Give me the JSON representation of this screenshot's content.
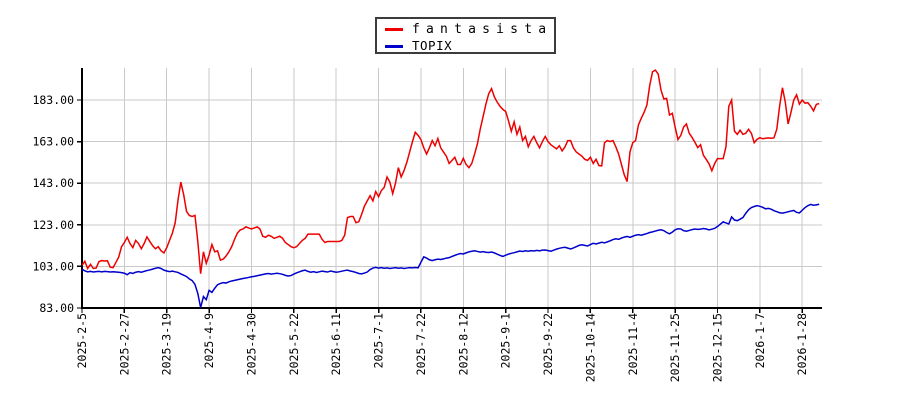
{
  "legend": {
    "items": [
      {
        "label": "fantasista",
        "color": "#ee0000"
      },
      {
        "label": "TOPIX",
        "color": "#0000cc"
      }
    ]
  },
  "chart_data": {
    "type": "line",
    "title": "",
    "xlabel": "",
    "ylabel": "",
    "grid": true,
    "legend_position": "top-center",
    "background_color": "#ffffff",
    "grid_color": "#c9c9c9",
    "axis_color": "#000000",
    "ylim": [
      83,
      198.4
    ],
    "y_tick_values": [
      83,
      103,
      123,
      143,
      163,
      183
    ],
    "y_tick_labels": [
      "83.00",
      "103.00",
      "123.00",
      "143.00",
      "163.00",
      "183.00"
    ],
    "x_tick_interval_days": 15,
    "total_days": 262,
    "x_tick_labels": [
      "2025-2-5",
      "2025-2-27",
      "2025-3-19",
      "2025-4-9",
      "2025-4-30",
      "2025-5-22",
      "2025-6-11",
      "2025-7-1",
      "2025-7-22",
      "2025-8-12",
      "2025-9-1",
      "2025-9-22",
      "2025-10-14",
      "2025-11-4",
      "2025-11-25",
      "2025-12-15",
      "2026-1-7",
      "2026-1-28"
    ],
    "series": [
      {
        "name": "fantasista",
        "color": "#ee0000",
        "values": [
          103.5,
          105.5,
          102,
          104,
          102,
          102.2,
          105.3,
          105.8,
          105.6,
          105.7,
          102.6,
          102.4,
          104.9,
          107.5,
          112.5,
          114.5,
          117,
          114,
          112,
          115.5,
          114,
          111.5,
          114,
          117.2,
          115,
          113,
          111.5,
          112.5,
          110.5,
          109.5,
          112,
          115.5,
          119,
          124,
          135,
          143.5,
          137.5,
          129.5,
          127.5,
          127,
          127.5,
          115,
          99.5,
          110,
          104.5,
          108.5,
          113.5,
          110,
          110.5,
          106,
          106.5,
          108,
          110,
          112.5,
          116,
          119,
          120.5,
          121,
          122,
          121.5,
          121,
          121.5,
          122,
          121,
          117.5,
          117,
          118,
          117.5,
          116.5,
          117,
          117.5,
          116.5,
          114.5,
          113.5,
          112.5,
          112,
          112.5,
          114,
          115.5,
          116.5,
          118.5,
          118.5,
          118.5,
          118.5,
          118.5,
          116,
          114.5,
          115,
          115,
          115,
          115,
          115,
          115.5,
          118,
          126.5,
          127,
          127,
          124,
          124.5,
          128,
          132,
          134.5,
          137,
          134.5,
          139,
          136.5,
          139.5,
          141,
          146,
          143.5,
          138,
          143,
          150.5,
          146,
          149,
          153,
          158,
          163,
          167.5,
          166,
          164,
          160,
          157,
          160,
          163.5,
          161,
          164.5,
          160,
          158,
          156,
          152.5,
          154,
          155.5,
          152,
          152,
          155,
          152,
          150.5,
          152.5,
          157,
          162,
          169,
          175,
          181,
          186,
          188.5,
          184.5,
          182,
          180,
          178.5,
          177.5,
          173,
          168,
          172.5,
          166.5,
          170,
          163.5,
          165.5,
          160.5,
          163.5,
          165.5,
          162.5,
          160,
          163,
          165.5,
          163,
          161.5,
          160.5,
          159.5,
          161,
          158.5,
          160.5,
          163.5,
          163.5,
          160,
          158,
          157,
          156,
          154.5,
          154,
          155.5,
          152.5,
          154.5,
          151.5,
          151.3,
          162.5,
          163.5,
          163,
          163.5,
          160.5,
          157,
          152,
          147,
          143.8,
          158,
          162.5,
          163.5,
          171,
          174.2,
          177,
          180.6,
          190,
          196.6,
          197.4,
          195.5,
          187.8,
          183.5,
          183.8,
          175.8,
          176.6,
          170,
          164,
          166,
          170,
          171.5,
          167,
          165,
          162.7,
          160.1,
          161.5,
          156.5,
          154.5,
          152.3,
          149,
          152.5,
          154.8,
          154.8,
          154.8,
          160.5,
          180,
          183,
          168.1,
          166.5,
          168.5,
          166.5,
          167,
          168.9,
          167,
          162.5,
          164.1,
          164.9,
          164.4,
          164.6,
          164.8,
          164.6,
          164.8,
          169,
          180.1,
          188.9,
          182,
          171.5,
          177,
          183,
          185.5,
          181,
          183,
          181.5,
          181.7,
          180,
          177.8,
          180.9,
          181.3
        ]
      },
      {
        "name": "TOPIX",
        "color": "#0000cc",
        "values": [
          101.6,
          100.9,
          100.4,
          100.6,
          100.3,
          100.5,
          100.6,
          100.4,
          100.6,
          100.5,
          100.3,
          100.4,
          100.3,
          100.2,
          100,
          99.7,
          99,
          100,
          99.6,
          100.2,
          100.5,
          100.2,
          100.6,
          101,
          101.3,
          101.7,
          102.1,
          102.4,
          102,
          101.2,
          100.8,
          100.5,
          100.7,
          100.4,
          100.1,
          99.4,
          98.8,
          98.1,
          97,
          96.2,
          94.3,
          90,
          83.2,
          88.5,
          87,
          91.5,
          90.5,
          92.5,
          94.2,
          94.8,
          95.2,
          95,
          95.6,
          96,
          96.3,
          96.6,
          96.9,
          97.2,
          97.4,
          97.7,
          98,
          98.2,
          98.5,
          98.8,
          99.1,
          99.4,
          99.6,
          99.3,
          99.5,
          99.7,
          99.5,
          99.2,
          98.7,
          98.4,
          98.6,
          99.3,
          99.9,
          100.4,
          100.9,
          101.2,
          100.6,
          100.2,
          100.5,
          100.1,
          100.4,
          100.7,
          100.5,
          100.3,
          100.8,
          100.5,
          100.2,
          100.4,
          100.7,
          101,
          101.2,
          100.8,
          100.5,
          100.1,
          99.6,
          99.4,
          99.8,
          100.3,
          101.5,
          102.2,
          102.5,
          102.2,
          102.4,
          102.1,
          102.3,
          102,
          102.2,
          102.4,
          102.1,
          102.3,
          102,
          102.2,
          102.4,
          102.3,
          102.5,
          102.3,
          105,
          107.6,
          107,
          106.2,
          105.8,
          106.2,
          106.5,
          106.3,
          106.6,
          107,
          107.2,
          107.8,
          108.3,
          108.8,
          109.2,
          109,
          109.5,
          110,
          110.3,
          110.5,
          110.2,
          109.9,
          110.1,
          109.8,
          109.7,
          109.9,
          109.5,
          108.9,
          108.3,
          107.8,
          108.4,
          108.9,
          109.3,
          109.6,
          110,
          110.4,
          110.2,
          110.5,
          110.3,
          110.6,
          110.4,
          110.7,
          110.5,
          110.8,
          110.9,
          110.6,
          110.3,
          110.8,
          111.3,
          111.7,
          112,
          112.2,
          111.8,
          111.4,
          111.9,
          112.5,
          113.1,
          113.4,
          113.1,
          112.8,
          113.5,
          114.1,
          113.8,
          114.2,
          114.6,
          114.3,
          114.8,
          115.3,
          115.9,
          116.3,
          116,
          116.6,
          117.1,
          117.4,
          117,
          117.5,
          118,
          118.3,
          118,
          118.4,
          118.8,
          119.3,
          119.6,
          120,
          120.4,
          120.6,
          120.2,
          119.3,
          118.7,
          119.5,
          120.6,
          121.1,
          121,
          120.2,
          119.9,
          120.3,
          120.7,
          121,
          120.8,
          120.9,
          121.2,
          121,
          120.6,
          120.9,
          121.3,
          122.2,
          123.3,
          124.4,
          123.9,
          123.4,
          126.8,
          125.3,
          125,
          125.7,
          126.5,
          128.5,
          130.2,
          131.3,
          131.8,
          132.2,
          131.9,
          131.4,
          130.7,
          130.9,
          130.5,
          129.8,
          129.3,
          128.8,
          128.6,
          128.9,
          129.3,
          129.6,
          129.9,
          129,
          128.7,
          130,
          131.3,
          132.2,
          132.8,
          132.4,
          132.6,
          132.9
        ]
      }
    ]
  }
}
